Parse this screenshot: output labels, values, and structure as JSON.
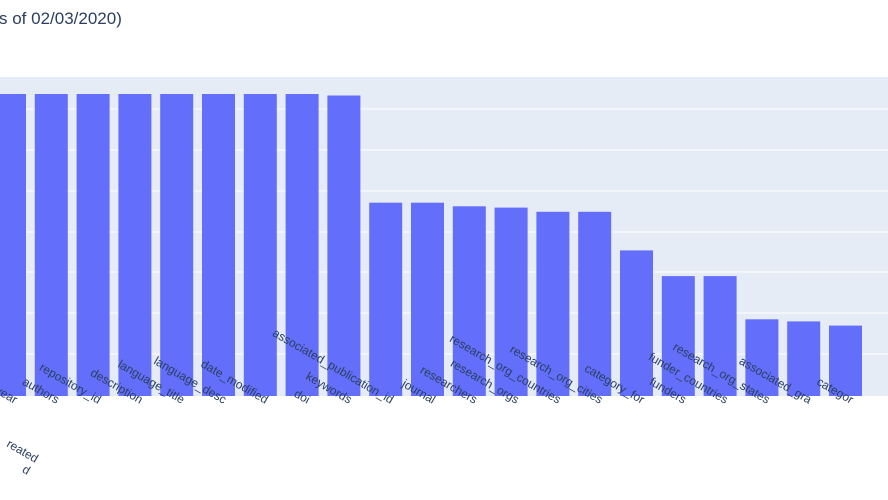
{
  "chart_data": {
    "type": "bar",
    "title": "s of 02/03/2020)",
    "xlabel": "",
    "ylabel": "",
    "ylim": [
      0,
      1.0
    ],
    "grid": true,
    "colors": {
      "bar": "#636efa",
      "plot_bg": "#e5ecf6",
      "grid": "#ffffff",
      "text": "#2a3f5f"
    },
    "categories": [
      "year",
      "authors",
      "repository_id",
      "description",
      "language_title",
      "language_desc",
      "date_modified",
      "doi",
      "keywords",
      "associated_publication_id",
      "journal",
      "researchers",
      "research_orgs",
      "research_org_countries",
      "research_org_cities",
      "category_for",
      "funders",
      "funder_countries",
      "research_org_states",
      "associated_gra",
      "categor"
    ],
    "values": [
      1.0,
      1.0,
      1.0,
      1.0,
      1.0,
      1.0,
      1.0,
      1.0,
      0.995,
      0.64,
      0.64,
      0.628,
      0.624,
      0.61,
      0.61,
      0.482,
      0.397,
      0.397,
      0.254,
      0.247,
      0.233
    ],
    "partial_labels": [
      "reated",
      "d"
    ]
  }
}
